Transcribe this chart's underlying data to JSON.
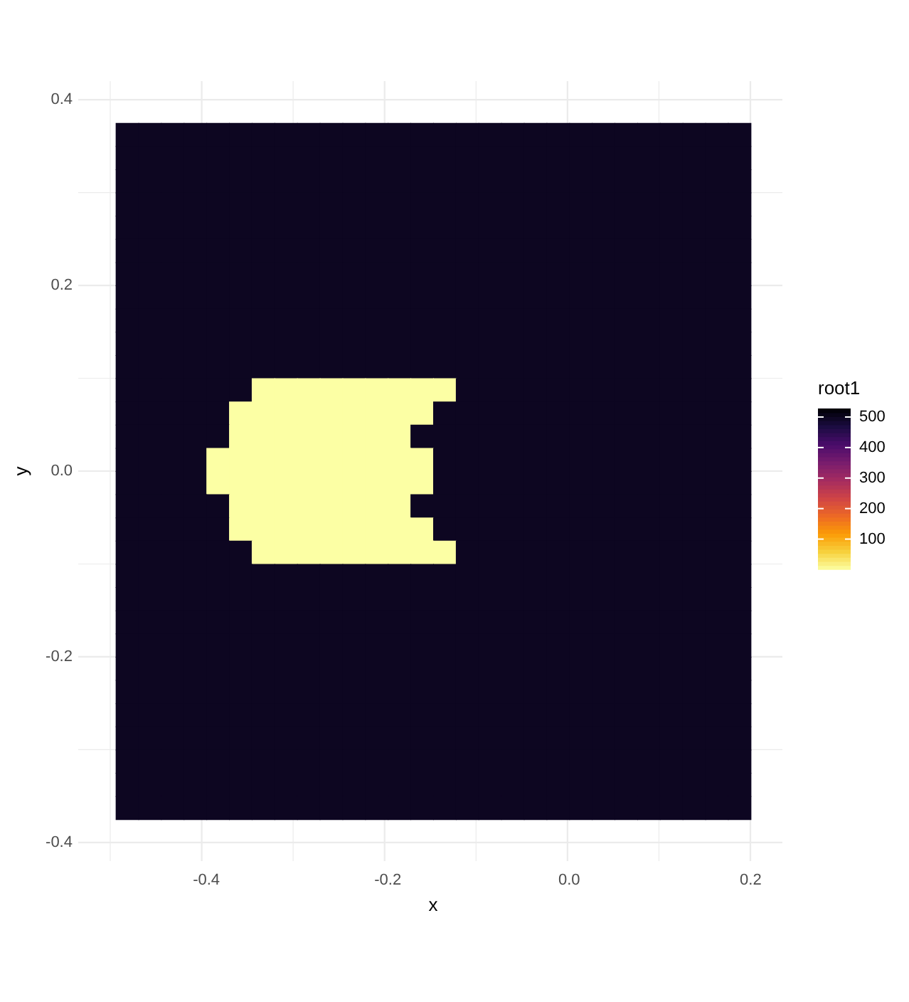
{
  "chart_data": {
    "type": "heatmap",
    "xlabel": "x",
    "ylabel": "y",
    "clabel": "root1",
    "x": [
      -0.4875,
      -0.4625,
      -0.4375,
      -0.4125,
      -0.3875,
      -0.3625,
      -0.3375,
      -0.3125,
      -0.2875,
      -0.2625,
      -0.2375,
      -0.2125,
      -0.1875,
      -0.1625,
      -0.1375,
      -0.1125,
      -0.0875,
      -0.0625,
      -0.0375,
      -0.0125,
      0.0125,
      0.0375,
      0.0625,
      0.0875,
      0.1125,
      0.1375,
      0.1625,
      0.1875
    ],
    "cells": [
      [
        500,
        500,
        500,
        500,
        500,
        500,
        500,
        500,
        500,
        500,
        500,
        500,
        500,
        500,
        500,
        500,
        500,
        500,
        500,
        500,
        500,
        500,
        500,
        500,
        500,
        500,
        500,
        500
      ],
      [
        500,
        500,
        500,
        500,
        500,
        500,
        500,
        500,
        500,
        500,
        500,
        500,
        500,
        500,
        500,
        500,
        500,
        500,
        500,
        500,
        500,
        500,
        500,
        500,
        500,
        500,
        500,
        500
      ],
      [
        500,
        500,
        500,
        500,
        500,
        500,
        500,
        500,
        500,
        500,
        500,
        500,
        500,
        500,
        500,
        500,
        500,
        500,
        500,
        500,
        500,
        500,
        500,
        500,
        500,
        500,
        500,
        500
      ],
      [
        500,
        500,
        500,
        500,
        500,
        500,
        500,
        500,
        500,
        500,
        500,
        500,
        500,
        500,
        500,
        500,
        500,
        500,
        500,
        500,
        500,
        500,
        500,
        500,
        500,
        500,
        500,
        500
      ],
      [
        500,
        500,
        500,
        500,
        500,
        500,
        500,
        500,
        500,
        500,
        500,
        500,
        500,
        500,
        500,
        500,
        500,
        500,
        500,
        500,
        500,
        500,
        500,
        500,
        500,
        500,
        500,
        500
      ],
      [
        500,
        500,
        500,
        500,
        500,
        500,
        500,
        500,
        500,
        500,
        500,
        500,
        500,
        500,
        500,
        500,
        500,
        500,
        500,
        500,
        500,
        500,
        500,
        500,
        500,
        500,
        500,
        500
      ],
      [
        500,
        500,
        500,
        500,
        500,
        500,
        500,
        500,
        500,
        500,
        500,
        500,
        500,
        500,
        500,
        500,
        500,
        500,
        500,
        500,
        500,
        500,
        500,
        500,
        500,
        500,
        500,
        500
      ],
      [
        500,
        500,
        500,
        500,
        500,
        500,
        500,
        500,
        500,
        500,
        500,
        500,
        500,
        500,
        500,
        500,
        500,
        500,
        500,
        500,
        500,
        500,
        500,
        500,
        500,
        500,
        500,
        500
      ],
      [
        500,
        500,
        500,
        500,
        500,
        500,
        500,
        500,
        500,
        500,
        500,
        500,
        500,
        500,
        500,
        500,
        500,
        500,
        500,
        500,
        500,
        500,
        500,
        500,
        500,
        500,
        500,
        500
      ],
      [
        500,
        500,
        500,
        500,
        500,
        500,
        500,
        500,
        500,
        500,
        500,
        500,
        500,
        500,
        500,
        500,
        500,
        500,
        500,
        500,
        500,
        500,
        500,
        500,
        500,
        500,
        500,
        500
      ],
      [
        500,
        500,
        500,
        500,
        500,
        500,
        500,
        500,
        500,
        500,
        500,
        500,
        500,
        500,
        500,
        500,
        500,
        500,
        500,
        500,
        500,
        500,
        500,
        500,
        500,
        500,
        500,
        500
      ],
      [
        500,
        500,
        500,
        500,
        500,
        500,
        1,
        1,
        1,
        1,
        1,
        1,
        1,
        1,
        1,
        500,
        500,
        500,
        500,
        500,
        500,
        500,
        500,
        500,
        500,
        500,
        500,
        500
      ],
      [
        500,
        500,
        500,
        500,
        500,
        1,
        1,
        1,
        1,
        1,
        1,
        1,
        1,
        1,
        500,
        500,
        500,
        500,
        500,
        500,
        500,
        500,
        500,
        500,
        500,
        500,
        500,
        500
      ],
      [
        500,
        500,
        500,
        500,
        500,
        1,
        1,
        1,
        1,
        1,
        1,
        1,
        1,
        500,
        500,
        500,
        500,
        500,
        500,
        500,
        500,
        500,
        500,
        500,
        500,
        500,
        500,
        500
      ],
      [
        500,
        500,
        500,
        500,
        1,
        1,
        1,
        1,
        1,
        1,
        1,
        1,
        1,
        1,
        500,
        500,
        500,
        500,
        500,
        500,
        500,
        500,
        500,
        500,
        500,
        500,
        500,
        500
      ],
      [
        500,
        500,
        500,
        500,
        1,
        1,
        1,
        1,
        1,
        1,
        1,
        1,
        1,
        1,
        500,
        500,
        500,
        500,
        500,
        500,
        500,
        500,
        500,
        500,
        500,
        500,
        500,
        500
      ],
      [
        500,
        500,
        500,
        500,
        500,
        1,
        1,
        1,
        1,
        1,
        1,
        1,
        1,
        500,
        500,
        500,
        500,
        500,
        500,
        500,
        500,
        500,
        500,
        500,
        500,
        500,
        500,
        500
      ],
      [
        500,
        500,
        500,
        500,
        500,
        1,
        1,
        1,
        1,
        1,
        1,
        1,
        1,
        1,
        500,
        500,
        500,
        500,
        500,
        500,
        500,
        500,
        500,
        500,
        500,
        500,
        500,
        500
      ],
      [
        500,
        500,
        500,
        500,
        500,
        500,
        1,
        1,
        1,
        1,
        1,
        1,
        1,
        1,
        1,
        500,
        500,
        500,
        500,
        500,
        500,
        500,
        500,
        500,
        500,
        500,
        500,
        500
      ],
      [
        500,
        500,
        500,
        500,
        500,
        500,
        500,
        500,
        500,
        500,
        500,
        500,
        500,
        500,
        500,
        500,
        500,
        500,
        500,
        500,
        500,
        500,
        500,
        500,
        500,
        500,
        500,
        500
      ],
      [
        500,
        500,
        500,
        500,
        500,
        500,
        500,
        500,
        500,
        500,
        500,
        500,
        500,
        500,
        500,
        500,
        500,
        500,
        500,
        500,
        500,
        500,
        500,
        500,
        500,
        500,
        500,
        500
      ],
      [
        500,
        500,
        500,
        500,
        500,
        500,
        500,
        500,
        500,
        500,
        500,
        500,
        500,
        500,
        500,
        500,
        500,
        500,
        500,
        500,
        500,
        500,
        500,
        500,
        500,
        500,
        500,
        500
      ],
      [
        500,
        500,
        500,
        500,
        500,
        500,
        500,
        500,
        500,
        500,
        500,
        500,
        500,
        500,
        500,
        500,
        500,
        500,
        500,
        500,
        500,
        500,
        500,
        500,
        500,
        500,
        500,
        500
      ],
      [
        500,
        500,
        500,
        500,
        500,
        500,
        500,
        500,
        500,
        500,
        500,
        500,
        500,
        500,
        500,
        500,
        500,
        500,
        500,
        500,
        500,
        500,
        500,
        500,
        500,
        500,
        500,
        500
      ],
      [
        500,
        500,
        500,
        500,
        500,
        500,
        500,
        500,
        500,
        500,
        500,
        500,
        500,
        500,
        500,
        500,
        500,
        500,
        500,
        500,
        500,
        500,
        500,
        500,
        500,
        500,
        500,
        500
      ],
      [
        500,
        500,
        500,
        500,
        500,
        500,
        500,
        500,
        500,
        500,
        500,
        500,
        500,
        500,
        500,
        500,
        500,
        500,
        500,
        500,
        500,
        500,
        500,
        500,
        500,
        500,
        500,
        500
      ],
      [
        500,
        500,
        500,
        500,
        500,
        500,
        500,
        500,
        500,
        500,
        500,
        500,
        500,
        500,
        500,
        500,
        500,
        500,
        500,
        500,
        500,
        500,
        500,
        500,
        500,
        500,
        500,
        500
      ],
      [
        500,
        500,
        500,
        500,
        500,
        500,
        500,
        500,
        500,
        500,
        500,
        500,
        500,
        500,
        500,
        500,
        500,
        500,
        500,
        500,
        500,
        500,
        500,
        500,
        500,
        500,
        500,
        500
      ],
      [
        500,
        500,
        500,
        500,
        500,
        500,
        500,
        500,
        500,
        500,
        500,
        500,
        500,
        500,
        500,
        500,
        500,
        500,
        500,
        500,
        500,
        500,
        500,
        500,
        500,
        500,
        500,
        500
      ],
      [
        500,
        500,
        500,
        500,
        500,
        500,
        500,
        500,
        500,
        500,
        500,
        500,
        500,
        500,
        500,
        500,
        500,
        500,
        500,
        500,
        500,
        500,
        500,
        500,
        500,
        500,
        500,
        500
      ]
    ],
    "clim": [
      1,
      528
    ],
    "cticks": [
      100,
      200,
      300,
      400,
      500
    ],
    "xlim": [
      -0.535,
      0.235
    ],
    "xticks": [
      {
        "value": -0.5,
        "label": null
      },
      -0.4,
      {
        "value": -0.3,
        "label": null
      },
      -0.2,
      {
        "value": -0.1,
        "label": null
      },
      {
        "value": 0,
        "label": "0.0"
      },
      {
        "value": 0.1,
        "label": null
      },
      0.2
    ],
    "ylim": [
      -0.42,
      0.42
    ],
    "yticks": [
      {
        "value": -0.4,
        "label": "-0.4"
      },
      {
        "value": -0.3,
        "label": null
      },
      -0.2,
      {
        "value": -0.1,
        "label": null
      },
      {
        "value": 0,
        "label": "0.0"
      },
      {
        "value": 0.1,
        "label": null
      },
      0.2,
      {
        "value": 0.3,
        "label": null
      },
      0.4
    ],
    "grid": true
  }
}
